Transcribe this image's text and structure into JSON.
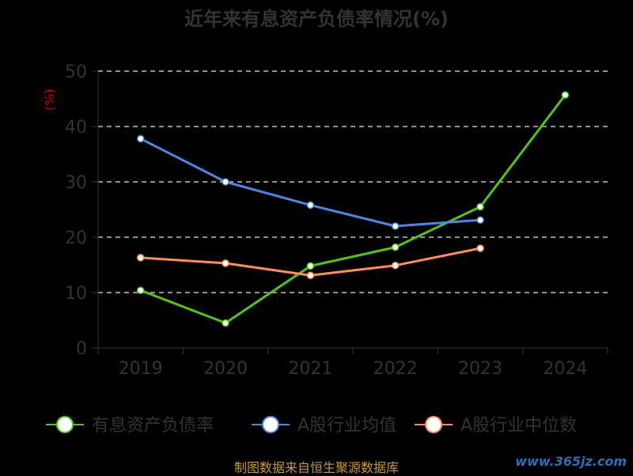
{
  "chart_data": {
    "type": "line",
    "title": "近年来有息资产负债率情况(%)",
    "ylabel": "(%)",
    "categories": [
      "2019",
      "2020",
      "2021",
      "2022",
      "2023",
      "2024"
    ],
    "yticks": [
      "0",
      "10",
      "20",
      "30",
      "40",
      "50"
    ],
    "ylim": [
      0,
      50
    ],
    "grid": true,
    "legend_position": "bottom",
    "series": [
      {
        "name": "有息资产负债率",
        "color": "#52c41a",
        "values": [
          10.4,
          4.5,
          14.8,
          18.2,
          25.5,
          45.7
        ]
      },
      {
        "name": "A股行业均值",
        "color": "#4f86e0",
        "values": [
          37.8,
          30.0,
          25.8,
          22.0,
          23.1,
          null
        ]
      },
      {
        "name": "A股行业中位数",
        "color": "#ff8c5a",
        "values": [
          16.3,
          15.3,
          13.1,
          14.9,
          18.0,
          null
        ]
      }
    ]
  },
  "footer": {
    "source": "制图数据来自恒生聚源数据库",
    "watermark": "www.365jz.com"
  }
}
